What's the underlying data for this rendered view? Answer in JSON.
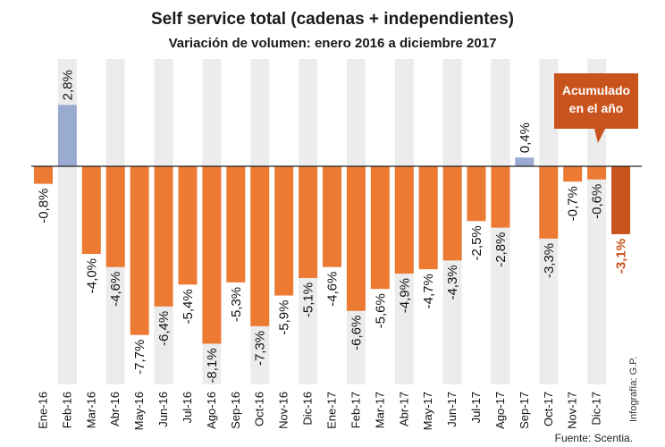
{
  "chart_data": {
    "type": "bar",
    "title": "Self service total (cadenas + independientes)",
    "subtitle": "Variación de volumen: enero 2016 a diciembre 2017",
    "categories": [
      "Ene-16",
      "Feb-16",
      "Mar-16",
      "Abr-16",
      "May-16",
      "Jun-16",
      "Jul-16",
      "Ago-16",
      "Sep-16",
      "Oct-16",
      "Nov-16",
      "Dic-16",
      "Ene-17",
      "Feb-17",
      "Mar-17",
      "Abr-17",
      "May-17",
      "Jun-17",
      "Jul-17",
      "Ago-17",
      "Sep-17",
      "Oct-17",
      "Nov-17",
      "Dic-17"
    ],
    "values": [
      -0.8,
      2.8,
      -4.0,
      -4.6,
      -7.7,
      -6.4,
      -5.4,
      -8.1,
      -5.3,
      -7.3,
      -5.9,
      -5.1,
      -4.6,
      -6.6,
      -5.6,
      -4.9,
      -4.7,
      -4.3,
      -2.5,
      -2.8,
      0.4,
      -3.3,
      -0.7,
      -0.6
    ],
    "value_labels": [
      "-0,8%",
      "2,8%",
      "-4,0%",
      "-4,6%",
      "-7,7%",
      "-6,4%",
      "-5,4%",
      "-8,1%",
      "-5,3%",
      "-7,3%",
      "-5,9%",
      "-5,1%",
      "-4,6%",
      "-6,6%",
      "-5,6%",
      "-4,9%",
      "-4,7%",
      "-4,3%",
      "-2,5%",
      "-2,8%",
      "0,4%",
      "-3,3%",
      "-0,7%",
      "-0,6%"
    ],
    "accumulated": {
      "value": -3.1,
      "label": "-3,1%",
      "callout": [
        "Acumulado",
        "en el año"
      ]
    },
    "ylim": [
      -8.5,
      3.2
    ],
    "xlabel": "",
    "ylabel": "",
    "grid": false,
    "colors": {
      "negative": "#ec7a33",
      "positive": "#9aabd1",
      "accumulated": "#c9531d",
      "stripe": "#ececec"
    }
  },
  "credit": "Infografía: G.P.",
  "source": "Fuente: Scentia."
}
